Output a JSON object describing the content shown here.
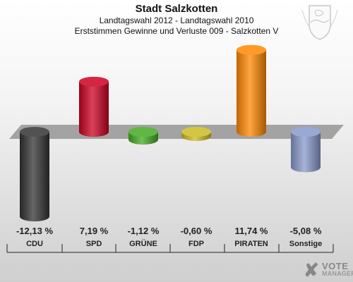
{
  "header": {
    "title": "Stadt Salzkotten",
    "subtitle1": "Landtagswahl 2012 - Landtagswahl 2010",
    "subtitle2": "Erststimmen Gewinne und Verluste 009 - Salzkotten V"
  },
  "chart_data": {
    "type": "bar",
    "title": "Stadt Salzkotten",
    "categories": [
      "CDU",
      "SPD",
      "GRÜNE",
      "FDP",
      "PIRATEN",
      "Sonstige"
    ],
    "values": [
      -12.13,
      7.19,
      -1.12,
      -0.6,
      11.74,
      -5.08
    ],
    "value_labels": [
      "-12,13 %",
      "7,19 %",
      "-1,12 %",
      "-0,60 %",
      "11,74 %",
      "-5,08 %"
    ],
    "colors": [
      "#333333",
      "#cc0022",
      "#44aa22",
      "#ccbb22",
      "#ff8800",
      "#8899cc"
    ],
    "grid": false,
    "legend": "none"
  },
  "logo": {
    "mark": "✘",
    "line1": "VOTE",
    "line2": "MANAGER"
  }
}
